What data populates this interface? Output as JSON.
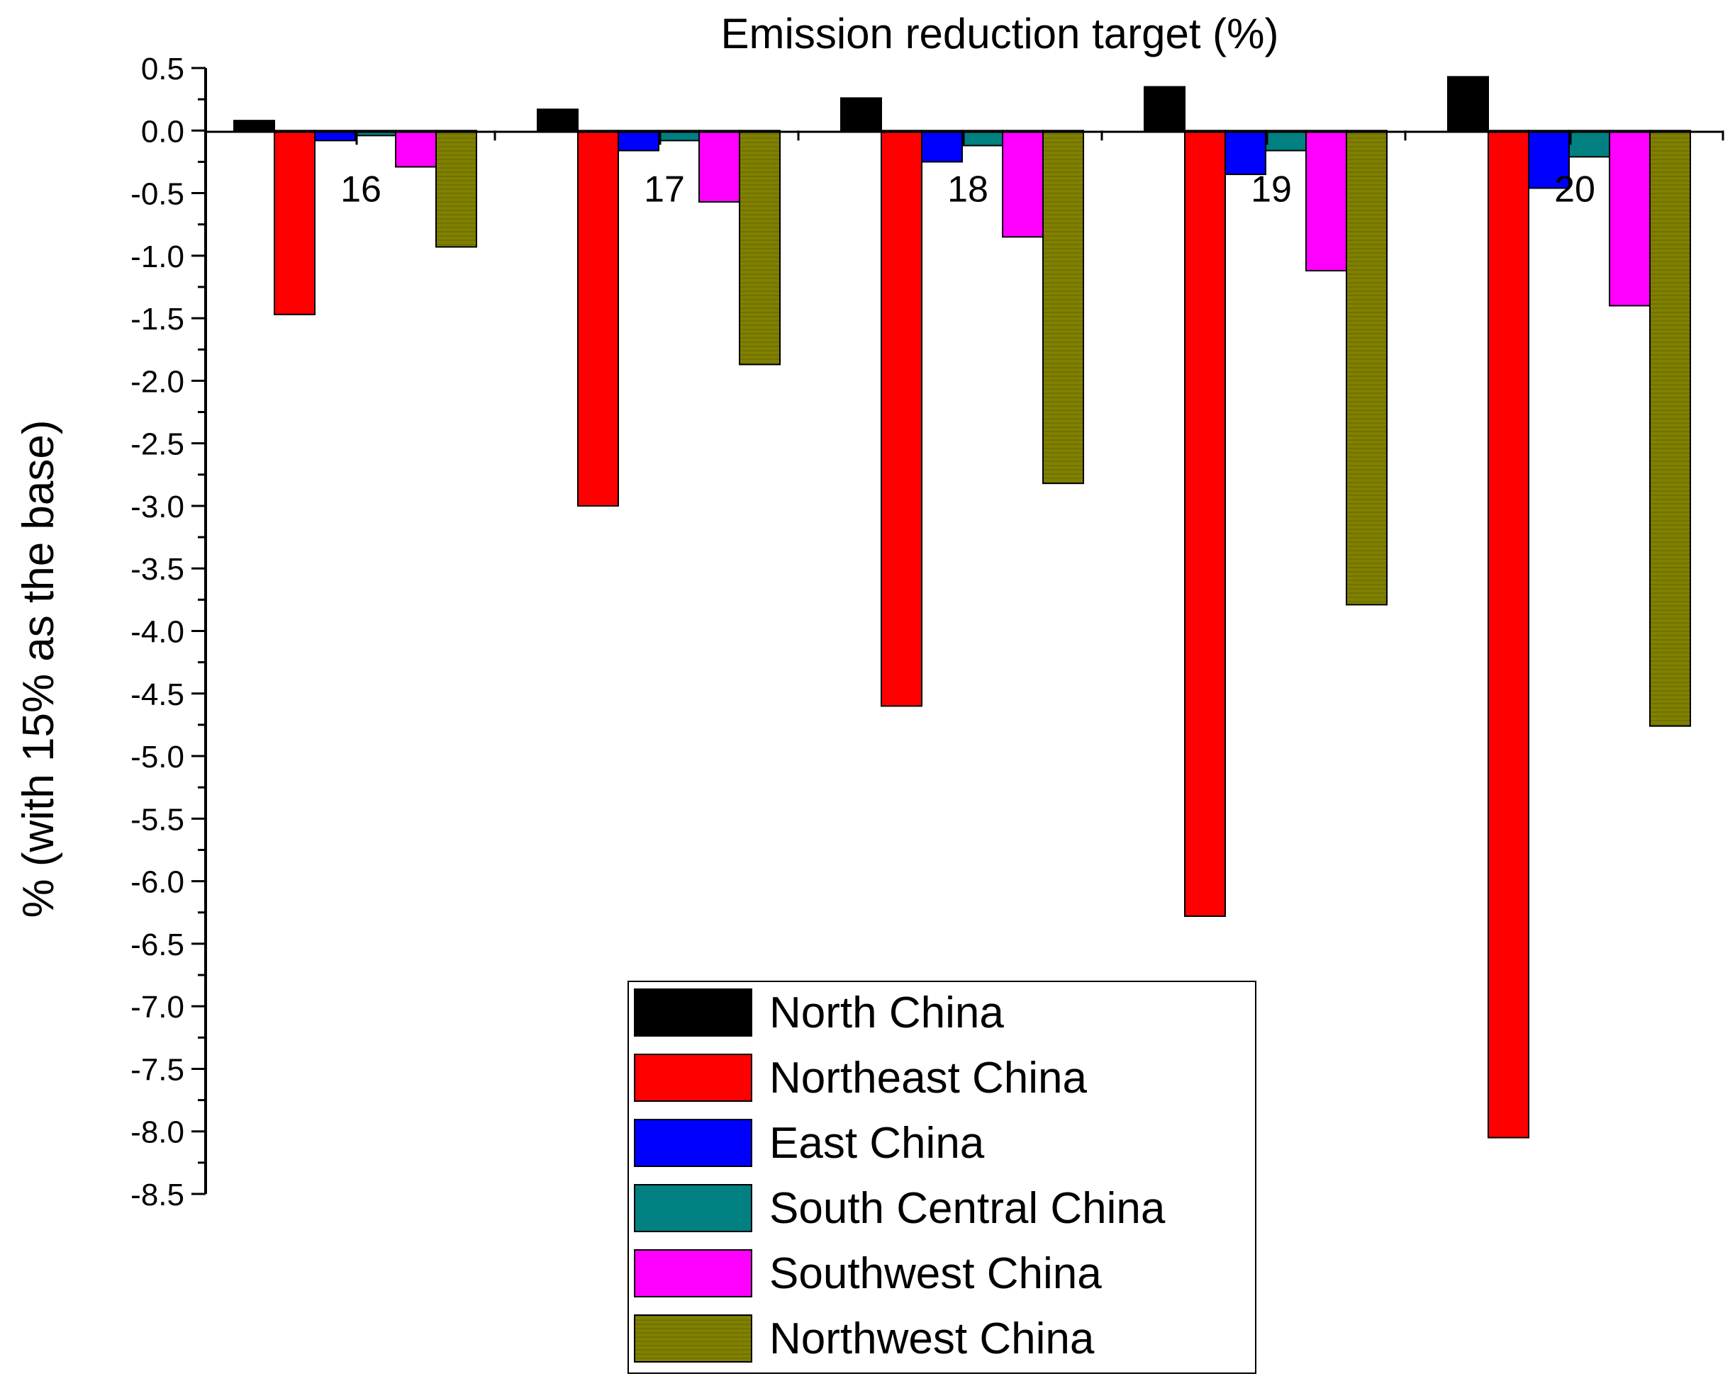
{
  "chart_data": {
    "type": "bar",
    "title": "Emission reduction target (%)",
    "xlabel": "",
    "ylabel": "% (with 15% as the base)",
    "ylim": [
      -8.5,
      0.5
    ],
    "y_ticks": [
      "0.5",
      "0.0",
      "-0.5",
      "-1.0",
      "-1.5",
      "-2.0",
      "-2.5",
      "-3.0",
      "-3.5",
      "-4.0",
      "-4.5",
      "-5.0",
      "-5.5",
      "-6.0",
      "-6.5",
      "-7.0",
      "-7.5",
      "-8.0",
      "-8.5"
    ],
    "categories": [
      "16",
      "17",
      "18",
      "19",
      "20"
    ],
    "series": [
      {
        "name": "North China",
        "color": "#000000",
        "values": [
          0.08,
          0.17,
          0.26,
          0.35,
          0.43
        ]
      },
      {
        "name": "Northeast China",
        "color": "#ff0000",
        "values": [
          -1.47,
          -3.0,
          -4.6,
          -6.28,
          -8.05
        ]
      },
      {
        "name": "East China",
        "color": "#0000ff",
        "values": [
          -0.08,
          -0.16,
          -0.25,
          -0.35,
          -0.46
        ]
      },
      {
        "name": "South Central China",
        "color": "#008080",
        "values": [
          -0.04,
          -0.08,
          -0.12,
          -0.16,
          -0.21
        ]
      },
      {
        "name": "Southwest China",
        "color": "#ff00ff",
        "values": [
          -0.29,
          -0.57,
          -0.85,
          -1.12,
          -1.4
        ]
      },
      {
        "name": "Northwest China",
        "color": "#808000",
        "values": [
          -0.93,
          -1.87,
          -2.82,
          -3.79,
          -4.76
        ]
      }
    ],
    "legend_position": "bottom-center",
    "grid": false
  }
}
